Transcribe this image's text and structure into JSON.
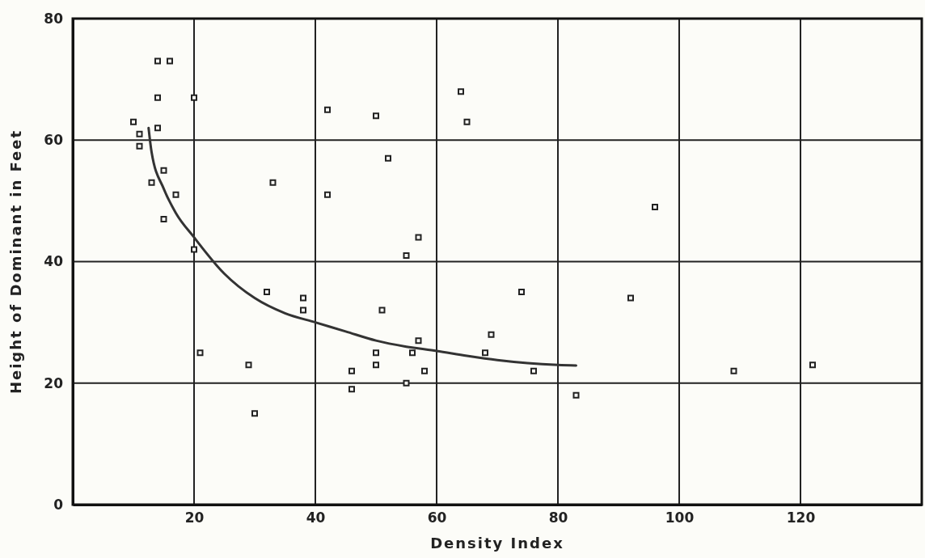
{
  "chart_data": {
    "type": "scatter",
    "xlabel": "Density Index",
    "ylabel": "Height of Dominant in Feet",
    "xlim": [
      0,
      140
    ],
    "ylim": [
      0,
      80
    ],
    "xticks": [
      20,
      40,
      60,
      80,
      100,
      120
    ],
    "yticks": [
      0,
      20,
      40,
      60,
      80
    ],
    "grid": true,
    "series": [
      {
        "marker": "square",
        "color": "#222222",
        "x": [
          10,
          11,
          11,
          13,
          14,
          16,
          14,
          14,
          15,
          15,
          17,
          20,
          20,
          21,
          29,
          30,
          32,
          33,
          38,
          38,
          42,
          42,
          46,
          46,
          50,
          52,
          51,
          50,
          50,
          55,
          57,
          55,
          56,
          57,
          58,
          64,
          65,
          74,
          69,
          68,
          76,
          83,
          92,
          96,
          109,
          122
        ],
        "values": [
          63,
          61,
          59,
          53,
          73,
          73,
          67,
          62,
          55,
          47,
          51,
          67,
          42,
          25,
          23,
          15,
          35,
          53,
          34,
          32,
          65,
          51,
          22,
          19,
          64,
          57,
          32,
          25,
          23,
          41,
          44,
          20,
          25,
          27,
          22,
          68,
          63,
          35,
          28,
          25,
          22,
          18,
          34,
          49,
          22,
          23
        ]
      },
      {
        "type": "line",
        "marker": "none",
        "color": "#333333",
        "x": [
          12.5,
          13,
          15,
          17,
          20,
          25,
          30,
          35,
          40,
          45,
          50,
          55,
          60,
          65,
          70,
          75,
          80,
          83
        ],
        "values": [
          62,
          58,
          52,
          48,
          44,
          38,
          34,
          31.5,
          30,
          28.5,
          27,
          26,
          25.3,
          24.5,
          23.8,
          23.3,
          23,
          22.9
        ]
      }
    ]
  }
}
